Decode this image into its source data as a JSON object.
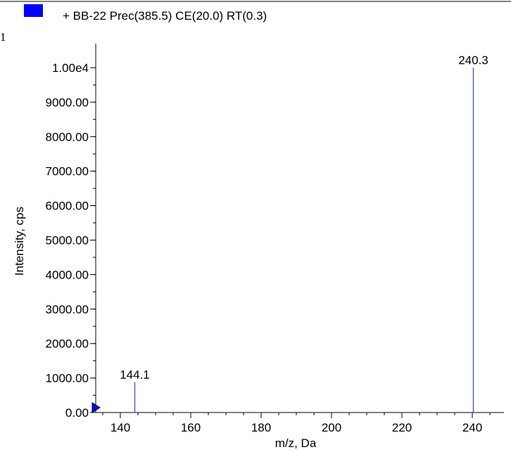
{
  "legend": {
    "entries": [
      {
        "label": "+ BB-22 Prec(385.5) CE(20.0) RT(0.3)",
        "color": "#0000ff"
      }
    ]
  },
  "corner_mark": "1",
  "colors": {
    "peak": "#3b4fd6",
    "axis": "#000000",
    "cursor": "#0000ff"
  },
  "chart_data": {
    "type": "bar",
    "xlabel": "m/z, Da",
    "ylabel": "Intensity, cps",
    "xlim": [
      133,
      249
    ],
    "ylim": [
      0,
      10000
    ],
    "x_ticks": [
      140,
      160,
      180,
      200,
      220,
      240
    ],
    "x_tick_labels": [
      "140",
      "160",
      "180",
      "200",
      "220",
      "240"
    ],
    "x_minor_step": 5,
    "y_ticks": [
      0,
      1000,
      2000,
      3000,
      4000,
      5000,
      6000,
      7000,
      8000,
      9000,
      10000
    ],
    "y_tick_labels": [
      "0.00",
      "1000.00",
      "2000.00",
      "3000.00",
      "4000.00",
      "5000.00",
      "6000.00",
      "7000.00",
      "8000.00",
      "9000.00",
      "1.00e4"
    ],
    "y_minor_step": 500,
    "grid": false,
    "legend_position": "top-left",
    "peaks": [
      {
        "mz": 144.1,
        "intensity": 880,
        "label": "144.1"
      },
      {
        "mz": 240.3,
        "intensity": 10000,
        "label": "240.3"
      }
    ]
  }
}
